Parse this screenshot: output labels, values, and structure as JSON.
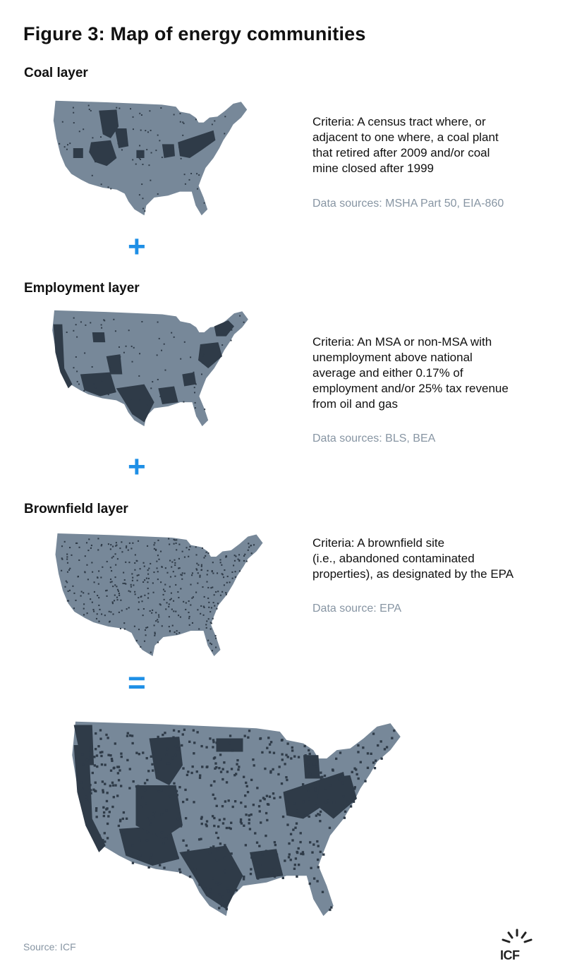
{
  "title": "Figure 3: Map of energy communities",
  "colors": {
    "land": "#778899",
    "highlight": "#2f3b48",
    "accent": "#1e8fe6",
    "muted": "#8795a3"
  },
  "layers": [
    {
      "id": "coal",
      "title": "Coal layer",
      "criteria_lines": [
        "Criteria: A census tract where, or",
        "adjacent to one where, a coal plant",
        "that retired after 2009 and/or coal",
        "mine closed after 1999"
      ],
      "sources": "Data sources: MSHA Part 50, EIA-860"
    },
    {
      "id": "employment",
      "title": "Employment layer",
      "criteria_lines": [
        "Criteria: An MSA or non-MSA with",
        "unemployment above national",
        "average and either 0.17% of",
        "employment and/or 25% tax revenue",
        "from oil and gas"
      ],
      "sources": "Data sources: BLS, BEA"
    },
    {
      "id": "brownfield",
      "title": "Brownfield layer",
      "criteria_lines": [
        "Criteria: A brownfield site",
        "(i.e., abandoned contaminated",
        "properties), as designated by the EPA"
      ],
      "sources": "Data source: EPA"
    }
  ],
  "operators": {
    "plus": "+",
    "equals": "="
  },
  "source_note": "Source:  ICF",
  "logo_text": "ICF"
}
